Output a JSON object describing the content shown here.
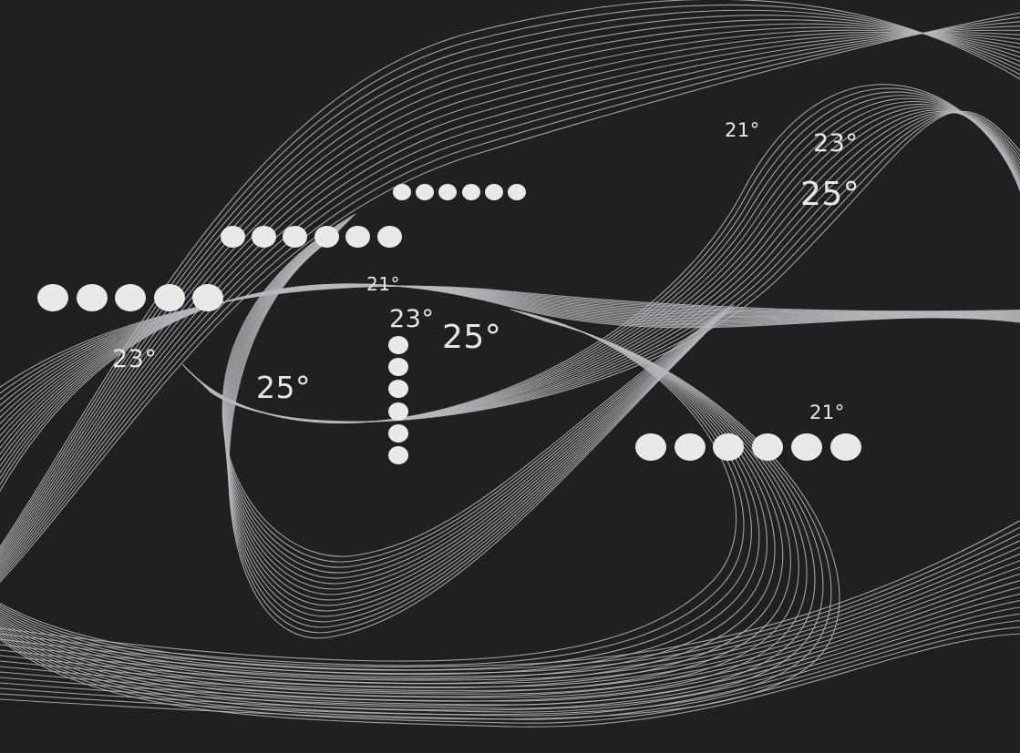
{
  "labels": {
    "top_right_21": "21°",
    "top_right_23": "23°",
    "top_right_25": "25°",
    "center_21": "21°",
    "center_23": "23°",
    "center_25": "25°",
    "left_23": "23°",
    "left_25": "25°",
    "bottom_right_21": "21°"
  },
  "colors": {
    "background": "#221f20",
    "text": "#e7e7e6",
    "dots": "#e9e9e8",
    "lines": "#b9b9bd"
  }
}
